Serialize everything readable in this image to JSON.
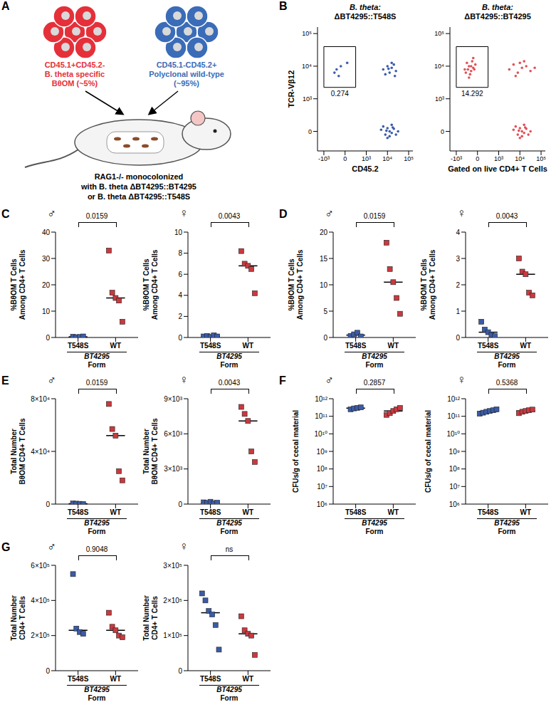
{
  "diagram": {
    "panel": "A",
    "groups": [
      {
        "lines": [
          "CD45.1+CD45.2-",
          "B. theta specific",
          "BθOM (~5%)"
        ],
        "color": "#e5303a"
      },
      {
        "lines": [
          "CD45.1-CD45.2+",
          "Polyclonal wild-type",
          "(~95%)"
        ],
        "color": "#3a6cb8"
      }
    ],
    "caption": [
      "RAG1-/- monocolonized",
      "with B. theta ΔBT4295::BT4295",
      "or B. theta ΔBT4295::T548S"
    ]
  },
  "chart_data": [
    {
      "type": "scatter",
      "panel": "B",
      "title": "B. theta: ΔBT4295::T548S",
      "xlabel": "CD45.2",
      "ylabel": "TCR-Vβ12",
      "color": "#3b5cae",
      "x": [
        1.7,
        1.9,
        2.0,
        2.1,
        2.2,
        2.3,
        2.4,
        2.0,
        2.2,
        1.8,
        2.5,
        2.1,
        1.95,
        2.25,
        1.8,
        2.0,
        2.1,
        2.2,
        2.3,
        2.4,
        1.9,
        2.2,
        2.05,
        2.35,
        -0.4,
        -0.2,
        -0.5,
        0.1,
        -0.3
      ],
      "y": [
        0.05,
        -0.1,
        0.1,
        0,
        -0.05,
        0.08,
        -0.1,
        -0.2,
        0.2,
        0.15,
        0,
        -0.15,
        0.02,
        0.12,
        1.9,
        2.0,
        1.8,
        1.95,
        2.05,
        1.85,
        1.75,
        2.1,
        1.92,
        1.7,
        1.9,
        2.0,
        1.8,
        2.1,
        1.7
      ],
      "xlim": [
        -1.3,
        3.2
      ],
      "ylim": [
        -0.6,
        3.2
      ],
      "xticks": [
        {
          "value": -1,
          "label": "-10³"
        },
        0,
        {
          "value": 1,
          "label": "10³"
        },
        {
          "value": 2,
          "label": "10⁴"
        },
        {
          "value": 3,
          "label": "10⁵"
        }
      ],
      "yticks": [
        0,
        {
          "value": 1,
          "label": "10³"
        },
        {
          "value": 2,
          "label": "10⁴"
        },
        {
          "value": 3,
          "label": "10⁵"
        }
      ],
      "gate": {
        "x": [
          -1.0,
          0.5
        ],
        "y": [
          1.35,
          2.6
        ],
        "label": "0.274"
      }
    },
    {
      "type": "scatter",
      "title": "B. theta: ΔBT4295::BT4295",
      "xlabel": "Gated on live CD4+ T Cells",
      "color": "#e05258",
      "x": [
        -0.6,
        -0.4,
        -0.3,
        -0.5,
        -0.2,
        -0.35,
        -0.1,
        -0.45,
        -0.25,
        -0.55,
        -0.15,
        -0.3,
        -0.4,
        -0.2,
        1.5,
        1.7,
        1.9,
        2.0,
        2.1,
        2.3,
        2.5,
        2.7,
        1.8,
        2.2,
        1.7,
        1.9,
        2.0,
        2.1,
        2.2,
        2.3,
        2.4,
        2.0,
        2.2,
        1.8,
        2.5,
        2.1,
        1.95,
        2.25
      ],
      "y": [
        1.9,
        2.0,
        1.85,
        2.1,
        1.95,
        1.75,
        2.05,
        1.9,
        2.15,
        1.8,
        1.9,
        2.0,
        1.65,
        2.25,
        1.9,
        2.05,
        1.8,
        2.1,
        1.95,
        2.0,
        1.85,
        1.95,
        1.7,
        2.15,
        0.05,
        -0.1,
        0.1,
        0,
        -0.05,
        0.08,
        -0.1,
        -0.2,
        0.2,
        0.15,
        0,
        -0.15,
        0.02,
        0.12
      ],
      "xlim": [
        -1.3,
        3.2
      ],
      "ylim": [
        -0.6,
        3.2
      ],
      "xticks": [
        {
          "value": -1,
          "label": "-10³"
        },
        0,
        {
          "value": 1,
          "label": "10³"
        },
        {
          "value": 2,
          "label": "10⁴"
        },
        {
          "value": 3,
          "label": "10⁵"
        }
      ],
      "yticks": [
        0,
        {
          "value": 1,
          "label": "10³"
        },
        {
          "value": 2,
          "label": "10⁴"
        },
        {
          "value": 3,
          "label": "10⁵"
        }
      ],
      "gate": {
        "x": [
          -1.0,
          0.5
        ],
        "y": [
          1.35,
          2.6
        ],
        "label": "14.292"
      }
    },
    {
      "type": "scatter",
      "panel": "C",
      "title": "♂",
      "categories": [
        "T548S",
        "WT"
      ],
      "xlabel": [
        "BT4295",
        "Form"
      ],
      "ylabel": "%BθOM T Cells Among CD4+ T Cells",
      "ylim": [
        0,
        40
      ],
      "yticks": [
        0,
        10,
        20,
        30,
        40
      ],
      "colors": [
        "#3b5ba5",
        "#c9393f"
      ],
      "marker": "square",
      "values": [
        [
          0.3,
          0.1,
          0.2,
          0.4
        ],
        [
          33,
          17,
          15,
          14,
          6
        ]
      ],
      "medians": [
        0.25,
        15
      ],
      "annotations": [
        "0.0159"
      ]
    },
    {
      "type": "scatter",
      "title": "♀",
      "categories": [
        "T548S",
        "WT"
      ],
      "xlabel": [
        "BT4295",
        "Form"
      ],
      "ylabel": "%BθOM T Cells Among CD4+ T Cells",
      "ylim": [
        0,
        10
      ],
      "yticks": [
        0,
        2,
        4,
        6,
        8,
        10
      ],
      "colors": [
        "#3b5ba5",
        "#c9393f"
      ],
      "marker": "square",
      "values": [
        [
          0.1,
          0.15,
          0.05,
          0.2,
          0.1
        ],
        [
          8.2,
          7.0,
          6.8,
          6.5,
          4.2
        ]
      ],
      "medians": [
        0.1,
        6.8
      ],
      "annotations": [
        "0.0043"
      ]
    },
    {
      "type": "scatter",
      "panel": "D",
      "title": "♂",
      "categories": [
        "T548S",
        "WT"
      ],
      "xlabel": [
        "BT4295",
        "Form"
      ],
      "ylabel": "%BθOM T Cells Among CD4+ T Cells",
      "ylim": [
        0,
        20
      ],
      "yticks": [
        0,
        5,
        10,
        15,
        20
      ],
      "colors": [
        "#3b5ba5",
        "#c9393f"
      ],
      "marker": "square",
      "values": [
        [
          0.3,
          0.6,
          0.9,
          0.2
        ],
        [
          18,
          13,
          10.5,
          7.5,
          4.5
        ]
      ],
      "medians": [
        0.45,
        10.5
      ],
      "annotations": [
        "0.0159"
      ]
    },
    {
      "type": "scatter",
      "title": "♀",
      "categories": [
        "T548S",
        "WT"
      ],
      "xlabel": [
        "BT4295",
        "Form"
      ],
      "ylabel": "%BθOM T Cells Among CD4+ T Cells",
      "ylim": [
        0,
        4
      ],
      "yticks": [
        0,
        1,
        2,
        3,
        4
      ],
      "colors": [
        "#3b5ba5",
        "#c9393f"
      ],
      "marker": "square",
      "values": [
        [
          0.6,
          0.3,
          0.2,
          0.1,
          0.05
        ],
        [
          3.0,
          2.5,
          2.4,
          1.7,
          1.6
        ]
      ],
      "medians": [
        0.2,
        2.4
      ],
      "annotations": [
        "0.0043"
      ]
    },
    {
      "type": "scatter",
      "panel": "E",
      "title": "♂",
      "categories": [
        "T548S",
        "WT"
      ],
      "xlabel": [
        "BT4295",
        "Form"
      ],
      "ylabel": "Total Number BθOM CD4+ T Cells",
      "ylim": [
        0,
        80000
      ],
      "yticks": [
        0,
        {
          "value": 40000,
          "label": "4×10⁴"
        },
        {
          "value": 80000,
          "label": "8×10⁴"
        }
      ],
      "colors": [
        "#3b5ba5",
        "#c9393f"
      ],
      "marker": "square",
      "values": [
        [
          500,
          300,
          200,
          100
        ],
        [
          76000,
          57000,
          52000,
          25000,
          18000
        ]
      ],
      "medians": [
        250,
        52000
      ],
      "annotations": [
        "0.0159"
      ]
    },
    {
      "type": "scatter",
      "title": "♀",
      "categories": [
        "T548S",
        "WT"
      ],
      "xlabel": [
        "BT4295",
        "Form"
      ],
      "ylabel": "Total Number BθOM CD4+ T Cells",
      "ylim": [
        0,
        9000
      ],
      "yticks": [
        0,
        {
          "value": 3000,
          "label": "3×10³"
        },
        {
          "value": 6000,
          "label": "6×10³"
        },
        {
          "value": 9000,
          "label": "9×10³"
        }
      ],
      "colors": [
        "#3b5ba5",
        "#c9393f"
      ],
      "marker": "square",
      "values": [
        [
          150,
          100,
          200,
          50,
          120
        ],
        [
          8300,
          7700,
          7100,
          4500,
          3600
        ]
      ],
      "medians": [
        120,
        7100
      ],
      "annotations": [
        "0.0043"
      ]
    },
    {
      "type": "scatter",
      "panel": "F",
      "title": "♂",
      "categories": [
        "T548S",
        "WT"
      ],
      "xlabel": [
        "BT4295",
        "Form"
      ],
      "ylabel": "CFUs/g of cecal material",
      "log": "y",
      "ylim": [
        1000000.0,
        1000000000000.0
      ],
      "yticks": [
        {
          "value": 1000000.0,
          "label": "10⁶"
        },
        {
          "value": 10000000.0,
          "label": "10⁷"
        },
        {
          "value": 100000000.0,
          "label": "10⁸"
        },
        {
          "value": 1000000000.0,
          "label": "10⁹"
        },
        {
          "value": 10000000000.0,
          "label": "10¹⁰"
        },
        {
          "value": 100000000000.0,
          "label": "10¹¹"
        },
        {
          "value": 1000000000000.0,
          "label": "10¹²"
        }
      ],
      "colors": [
        "#3b5ba5",
        "#c9393f"
      ],
      "marker": "square",
      "values": [
        [
          250000000000.0,
          280000000000.0,
          300000000000.0,
          320000000000.0
        ],
        [
          120000000000.0,
          150000000000.0,
          200000000000.0,
          250000000000.0,
          300000000000.0
        ]
      ],
      "medians": [
        290000000000.0,
        200000000000.0
      ],
      "annotations": [
        "0.2857"
      ]
    },
    {
      "type": "scatter",
      "title": "♀",
      "categories": [
        "T548S",
        "WT"
      ],
      "xlabel": [
        "BT4295",
        "Form"
      ],
      "ylabel": "CFUs/g of cecal material",
      "log": "y",
      "ylim": [
        1000000.0,
        1000000000000.0
      ],
      "yticks": [
        {
          "value": 1000000.0,
          "label": "10⁶"
        },
        {
          "value": 10000000.0,
          "label": "10⁷"
        },
        {
          "value": 100000000.0,
          "label": "10⁸"
        },
        {
          "value": 1000000000.0,
          "label": "10⁹"
        },
        {
          "value": 10000000000.0,
          "label": "10¹⁰"
        },
        {
          "value": 100000000000.0,
          "label": "10¹¹"
        },
        {
          "value": 1000000000000.0,
          "label": "10¹²"
        }
      ],
      "colors": [
        "#3b5ba5",
        "#c9393f"
      ],
      "marker": "square",
      "values": [
        [
          140000000000.0,
          160000000000.0,
          180000000000.0,
          200000000000.0,
          220000000000.0,
          250000000000.0
        ],
        [
          150000000000.0,
          180000000000.0,
          200000000000.0,
          220000000000.0,
          240000000000.0
        ]
      ],
      "medians": [
        190000000000.0,
        200000000000.0
      ],
      "annotations": [
        "0.5368"
      ]
    },
    {
      "type": "scatter",
      "panel": "G",
      "title": "♂",
      "categories": [
        "T548S",
        "WT"
      ],
      "xlabel": [
        "BT4295",
        "Form"
      ],
      "ylabel": "Total Number CD4+ T Cells",
      "ylim": [
        0,
        600000
      ],
      "yticks": [
        0,
        {
          "value": 200000,
          "label": "2×10⁵"
        },
        {
          "value": 400000,
          "label": "4×10⁵"
        },
        {
          "value": 600000,
          "label": "6×10⁵"
        }
      ],
      "colors": [
        "#3b5ba5",
        "#c9393f"
      ],
      "marker": "square",
      "values": [
        [
          550000,
          240000,
          220000,
          210000
        ],
        [
          330000,
          250000,
          230000,
          200000,
          190000
        ]
      ],
      "medians": [
        230000,
        230000
      ],
      "annotations": [
        "0.9048"
      ]
    },
    {
      "type": "scatter",
      "title": "♀",
      "categories": [
        "T548S",
        "WT"
      ],
      "xlabel": [
        "BT4295",
        "Form"
      ],
      "ylabel": "Total Number CD4+ T Cells",
      "ylim": [
        0,
        300000
      ],
      "yticks": [
        0,
        {
          "value": 100000,
          "label": "1×10⁵"
        },
        {
          "value": 200000,
          "label": "2×10⁵"
        },
        {
          "value": 300000,
          "label": "3×10⁵"
        }
      ],
      "colors": [
        "#3b5ba5",
        "#c9393f"
      ],
      "marker": "square",
      "values": [
        [
          220000,
          200000,
          170000,
          160000,
          130000,
          60000
        ],
        [
          155000,
          115000,
          105000,
          100000,
          45000
        ]
      ],
      "medians": [
        165000,
        105000
      ],
      "annotations": [
        "ns"
      ]
    }
  ]
}
